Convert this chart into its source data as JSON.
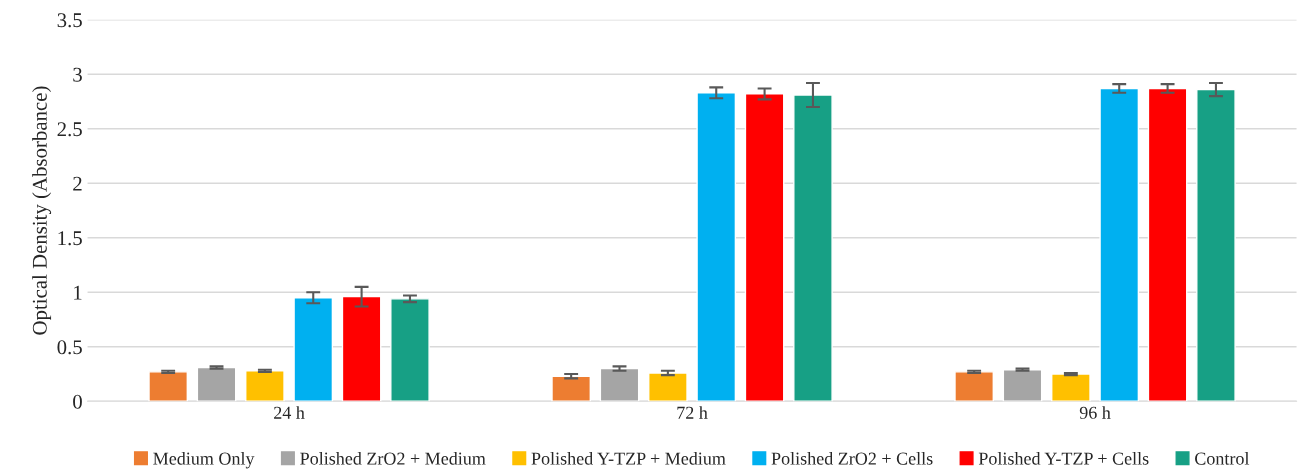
{
  "chart_data": {
    "type": "bar",
    "ylabel": "Optical Density (Absorbance)",
    "categories": [
      "24 h",
      "72 h",
      "96 h"
    ],
    "series": [
      {
        "name": "Medium Only",
        "color": "#ed7d31",
        "values": [
          0.27,
          0.23,
          0.27
        ],
        "errors": [
          0.01,
          0.02,
          0.01
        ]
      },
      {
        "name": "Polished ZrO2 + Medium",
        "color": "#a5a5a5",
        "values": [
          0.31,
          0.3,
          0.29
        ],
        "errors": [
          0.01,
          0.02,
          0.01
        ]
      },
      {
        "name": "Polished Y-TZP + Medium",
        "color": "#ffc000",
        "values": [
          0.28,
          0.26,
          0.25
        ],
        "errors": [
          0.01,
          0.02,
          0.01
        ]
      },
      {
        "name": "Polished ZrO2 + Cells",
        "color": "#00b0f0",
        "values": [
          0.95,
          2.83,
          2.87
        ],
        "errors": [
          0.05,
          0.05,
          0.04
        ]
      },
      {
        "name": "Polished Y-TZP + Cells",
        "color": "#ff0000",
        "values": [
          0.96,
          2.82,
          2.87
        ],
        "errors": [
          0.09,
          0.05,
          0.04
        ]
      },
      {
        "name": "Control",
        "color": "#17a085",
        "values": [
          0.94,
          2.81,
          2.86
        ],
        "errors": [
          0.03,
          0.11,
          0.06
        ]
      }
    ],
    "ylim": [
      0,
      3.5
    ],
    "yticks": [
      0,
      0.5,
      1,
      1.5,
      2,
      2.5,
      3,
      3.5
    ],
    "grid": "y",
    "legend": "bottom"
  }
}
